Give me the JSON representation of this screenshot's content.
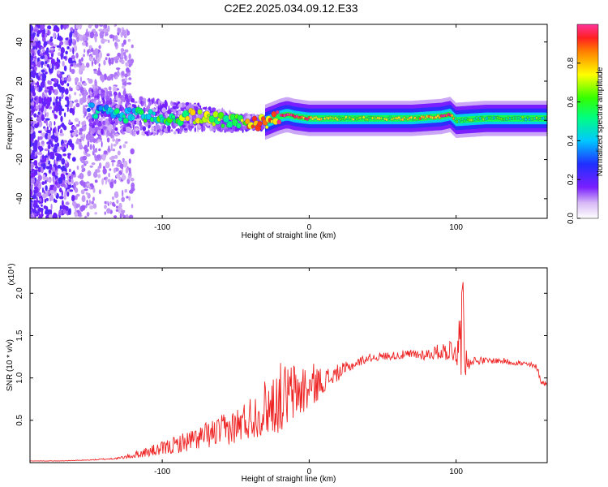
{
  "title": "C2E2.2025.034.09.12.E33",
  "chart_data": [
    {
      "type": "heatmap",
      "xlabel": "Height of straight line (km)",
      "ylabel": "Frequency (Hz)",
      "xlim": [
        -190,
        162
      ],
      "ylim": [
        -50,
        49
      ],
      "xticks": [
        -100,
        0,
        100
      ],
      "yticks": [
        -40,
        -20,
        0,
        20,
        40
      ],
      "colorbar": {
        "label": "Normalized spectral amplitude",
        "range": [
          0,
          1
        ],
        "ticks": [
          "0.0",
          "0.2",
          "0.4",
          "0.6",
          "0.8"
        ]
      },
      "ridge": {
        "x": [
          -150,
          -130,
          -110,
          -90,
          -80,
          -70,
          -60,
          -50,
          -40,
          -30,
          -20,
          -15,
          -10,
          0,
          10,
          30,
          50,
          70,
          90,
          96,
          100,
          120,
          140,
          162
        ],
        "freq": [
          5,
          3,
          2,
          1,
          2,
          1,
          0,
          -1,
          -1,
          -1,
          2,
          3,
          2,
          1,
          1,
          1,
          1,
          1,
          2,
          3,
          0,
          1,
          1,
          1
        ],
        "amplitude": [
          0.35,
          0.45,
          0.5,
          0.55,
          0.7,
          0.7,
          0.6,
          0.6,
          0.8,
          0.85,
          0.9,
          0.95,
          0.95,
          0.85,
          0.65,
          0.65,
          0.65,
          0.7,
          0.9,
          0.9,
          0.6,
          0.55,
          0.55,
          0.55
        ]
      }
    },
    {
      "type": "line",
      "xlabel": "Height of straight line (km)",
      "ylabel": "SNR (10 * v/v)",
      "yscale_label": "(x10⁴)",
      "xlim": [
        -190,
        162
      ],
      "ylim": [
        0,
        2.3
      ],
      "xticks": [
        -100,
        0,
        100
      ],
      "yticks": [
        "0.5",
        "1.0",
        "1.5",
        "2.0"
      ],
      "series": [
        {
          "color": "#ee2222",
          "x": [
            -190,
            -170,
            -150,
            -130,
            -120,
            -110,
            -100,
            -90,
            -80,
            -70,
            -60,
            -50,
            -40,
            -30,
            -20,
            -10,
            0,
            10,
            20,
            30,
            40,
            50,
            60,
            70,
            80,
            90,
            100,
            103,
            104,
            105,
            106,
            110,
            120,
            130,
            140,
            150,
            155,
            158,
            162
          ],
          "y": [
            0.02,
            0.02,
            0.03,
            0.05,
            0.08,
            0.12,
            0.15,
            0.2,
            0.25,
            0.3,
            0.35,
            0.4,
            0.5,
            0.6,
            0.7,
            0.78,
            0.85,
            0.95,
            1.05,
            1.15,
            1.23,
            1.25,
            1.26,
            1.27,
            1.27,
            1.3,
            1.32,
            1.3,
            1.25,
            1.2,
            1.15,
            1.2,
            1.2,
            1.2,
            1.18,
            1.15,
            1.12,
            0.95,
            0.92
          ],
          "noise": [
            0.002,
            0.002,
            0.004,
            0.01,
            0.03,
            0.05,
            0.07,
            0.09,
            0.11,
            0.13,
            0.15,
            0.18,
            0.22,
            0.28,
            0.35,
            0.3,
            0.25,
            0.12,
            0.08,
            0.05,
            0.04,
            0.04,
            0.04,
            0.05,
            0.06,
            0.08,
            0.15,
            0.45,
            0.7,
            0.45,
            0.15,
            0.05,
            0.03,
            0.03,
            0.03,
            0.03,
            0.03,
            0.03,
            0.03
          ]
        }
      ]
    }
  ]
}
